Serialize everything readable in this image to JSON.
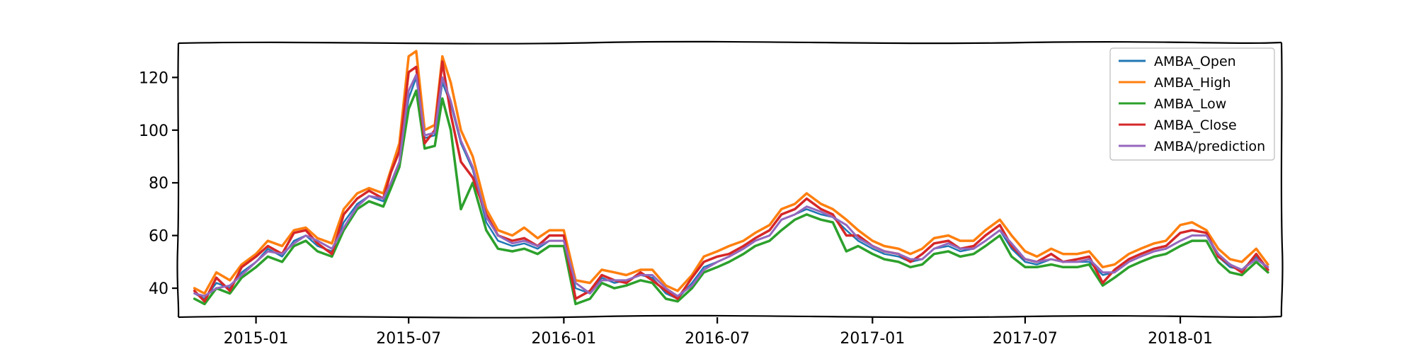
{
  "chart_data": {
    "type": "line",
    "title": "",
    "xlabel": "",
    "ylabel": "",
    "x_range": [
      "2014-10-01",
      "2018-05-01"
    ],
    "ylim": [
      29,
      133
    ],
    "x_ticks": [
      "2015-01-01",
      "2015-07-01",
      "2016-01-01",
      "2016-07-01",
      "2017-01-01",
      "2017-07-01",
      "2018-01-01"
    ],
    "x_tick_labels": [
      "2015-01",
      "2015-07",
      "2016-01",
      "2016-07",
      "2017-01",
      "2017-07",
      "2018-01"
    ],
    "y_ticks": [
      40,
      60,
      80,
      100,
      120
    ],
    "y_tick_labels": [
      "40",
      "60",
      "80",
      "100",
      "120"
    ],
    "grid": false,
    "legend_position": "top-right",
    "x": [
      "2014-10-20",
      "2014-11-01",
      "2014-11-15",
      "2014-12-01",
      "2014-12-15",
      "2015-01-01",
      "2015-01-15",
      "2015-02-01",
      "2015-02-15",
      "2015-03-01",
      "2015-03-15",
      "2015-04-01",
      "2015-04-15",
      "2015-05-01",
      "2015-05-15",
      "2015-06-01",
      "2015-06-10",
      "2015-06-20",
      "2015-07-01",
      "2015-07-10",
      "2015-07-20",
      "2015-08-01",
      "2015-08-10",
      "2015-08-20",
      "2015-09-01",
      "2015-09-15",
      "2015-10-01",
      "2015-10-15",
      "2015-11-01",
      "2015-11-15",
      "2015-12-01",
      "2015-12-15",
      "2016-01-01",
      "2016-01-15",
      "2016-02-01",
      "2016-02-15",
      "2016-03-01",
      "2016-03-15",
      "2016-04-01",
      "2016-04-15",
      "2016-05-01",
      "2016-05-15",
      "2016-06-01",
      "2016-06-15",
      "2016-07-01",
      "2016-07-15",
      "2016-08-01",
      "2016-08-15",
      "2016-09-01",
      "2016-09-15",
      "2016-10-01",
      "2016-10-15",
      "2016-11-01",
      "2016-11-15",
      "2016-12-01",
      "2016-12-15",
      "2017-01-01",
      "2017-01-15",
      "2017-02-01",
      "2017-02-15",
      "2017-03-01",
      "2017-03-15",
      "2017-04-01",
      "2017-04-15",
      "2017-05-01",
      "2017-05-15",
      "2017-06-01",
      "2017-06-15",
      "2017-07-01",
      "2017-07-15",
      "2017-08-01",
      "2017-08-15",
      "2017-09-01",
      "2017-09-15",
      "2017-10-01",
      "2017-10-15",
      "2017-11-01",
      "2017-11-15",
      "2017-12-01",
      "2017-12-15",
      "2018-01-01",
      "2018-01-15",
      "2018-02-01",
      "2018-02-15",
      "2018-03-01",
      "2018-03-15",
      "2018-04-01",
      "2018-04-15"
    ],
    "series": [
      {
        "name": "AMBA_Open",
        "color": "#1f77b4",
        "values": [
          38,
          36,
          42,
          40,
          46,
          50,
          55,
          52,
          58,
          60,
          56,
          54,
          65,
          72,
          75,
          73,
          80,
          88,
          112,
          120,
          97,
          98,
          118,
          110,
          95,
          85,
          65,
          58,
          56,
          57,
          55,
          58,
          58,
          40,
          38,
          44,
          42,
          43,
          45,
          44,
          38,
          36,
          42,
          48,
          50,
          52,
          55,
          58,
          60,
          66,
          68,
          70,
          68,
          67,
          62,
          58,
          55,
          53,
          52,
          50,
          51,
          55,
          56,
          54,
          55,
          58,
          62,
          55,
          50,
          49,
          51,
          50,
          50,
          50,
          45,
          46,
          50,
          52,
          54,
          55,
          58,
          60,
          60,
          52,
          48,
          47,
          52,
          47
        ]
      },
      {
        "name": "AMBA_High",
        "color": "#ff7f0e",
        "values": [
          40,
          38,
          46,
          43,
          49,
          53,
          58,
          56,
          62,
          63,
          59,
          57,
          70,
          76,
          78,
          76,
          85,
          95,
          128,
          130,
          100,
          102,
          128,
          118,
          100,
          90,
          70,
          62,
          60,
          63,
          59,
          62,
          62,
          43,
          42,
          47,
          46,
          45,
          47,
          47,
          41,
          39,
          45,
          52,
          54,
          56,
          58,
          61,
          64,
          70,
          72,
          76,
          72,
          70,
          66,
          62,
          58,
          56,
          55,
          53,
          55,
          59,
          60,
          58,
          58,
          62,
          66,
          60,
          54,
          52,
          55,
          53,
          53,
          54,
          48,
          49,
          53,
          55,
          57,
          58,
          64,
          65,
          62,
          55,
          51,
          50,
          55,
          49
        ]
      },
      {
        "name": "AMBA_Low",
        "color": "#2ca02c",
        "values": [
          36,
          34,
          40,
          38,
          44,
          48,
          52,
          50,
          56,
          58,
          54,
          52,
          62,
          70,
          73,
          71,
          78,
          86,
          108,
          115,
          93,
          94,
          112,
          100,
          70,
          80,
          62,
          55,
          54,
          55,
          53,
          56,
          56,
          34,
          36,
          42,
          40,
          41,
          43,
          42,
          36,
          35,
          40,
          46,
          48,
          50,
          53,
          56,
          58,
          62,
          66,
          68,
          66,
          65,
          54,
          56,
          53,
          51,
          50,
          48,
          49,
          53,
          54,
          52,
          53,
          56,
          60,
          52,
          48,
          48,
          49,
          48,
          48,
          49,
          41,
          44,
          48,
          50,
          52,
          53,
          56,
          58,
          58,
          50,
          46,
          45,
          50,
          46
        ]
      },
      {
        "name": "AMBA_Close",
        "color": "#d62728",
        "values": [
          39,
          35,
          44,
          39,
          48,
          52,
          56,
          53,
          61,
          62,
          57,
          53,
          68,
          74,
          77,
          74,
          84,
          92,
          122,
          124,
          95,
          100,
          126,
          106,
          88,
          82,
          68,
          60,
          58,
          59,
          56,
          60,
          60,
          36,
          39,
          45,
          43,
          42,
          46,
          43,
          39,
          36,
          44,
          50,
          52,
          53,
          56,
          59,
          62,
          68,
          70,
          74,
          70,
          68,
          60,
          60,
          56,
          54,
          53,
          50,
          53,
          57,
          58,
          55,
          56,
          60,
          64,
          56,
          51,
          50,
          53,
          50,
          51,
          52,
          42,
          47,
          51,
          53,
          55,
          56,
          61,
          62,
          61,
          52,
          49,
          46,
          53,
          47
        ]
      },
      {
        "name": "AMBA/prediction",
        "color": "#9467bd",
        "values": [
          38,
          37,
          40,
          41,
          45,
          50,
          54,
          53,
          57,
          60,
          58,
          55,
          63,
          71,
          75,
          74,
          80,
          88,
          115,
          121,
          98,
          99,
          120,
          111,
          96,
          86,
          67,
          60,
          57,
          58,
          56,
          58,
          58,
          42,
          38,
          43,
          43,
          43,
          45,
          45,
          40,
          37,
          41,
          47,
          50,
          52,
          55,
          58,
          60,
          66,
          68,
          71,
          69,
          67,
          64,
          59,
          56,
          54,
          53,
          51,
          51,
          55,
          57,
          55,
          55,
          58,
          62,
          57,
          51,
          50,
          51,
          50,
          50,
          51,
          46,
          46,
          50,
          52,
          54,
          55,
          58,
          60,
          60,
          53,
          49,
          47,
          51,
          48
        ]
      }
    ]
  }
}
